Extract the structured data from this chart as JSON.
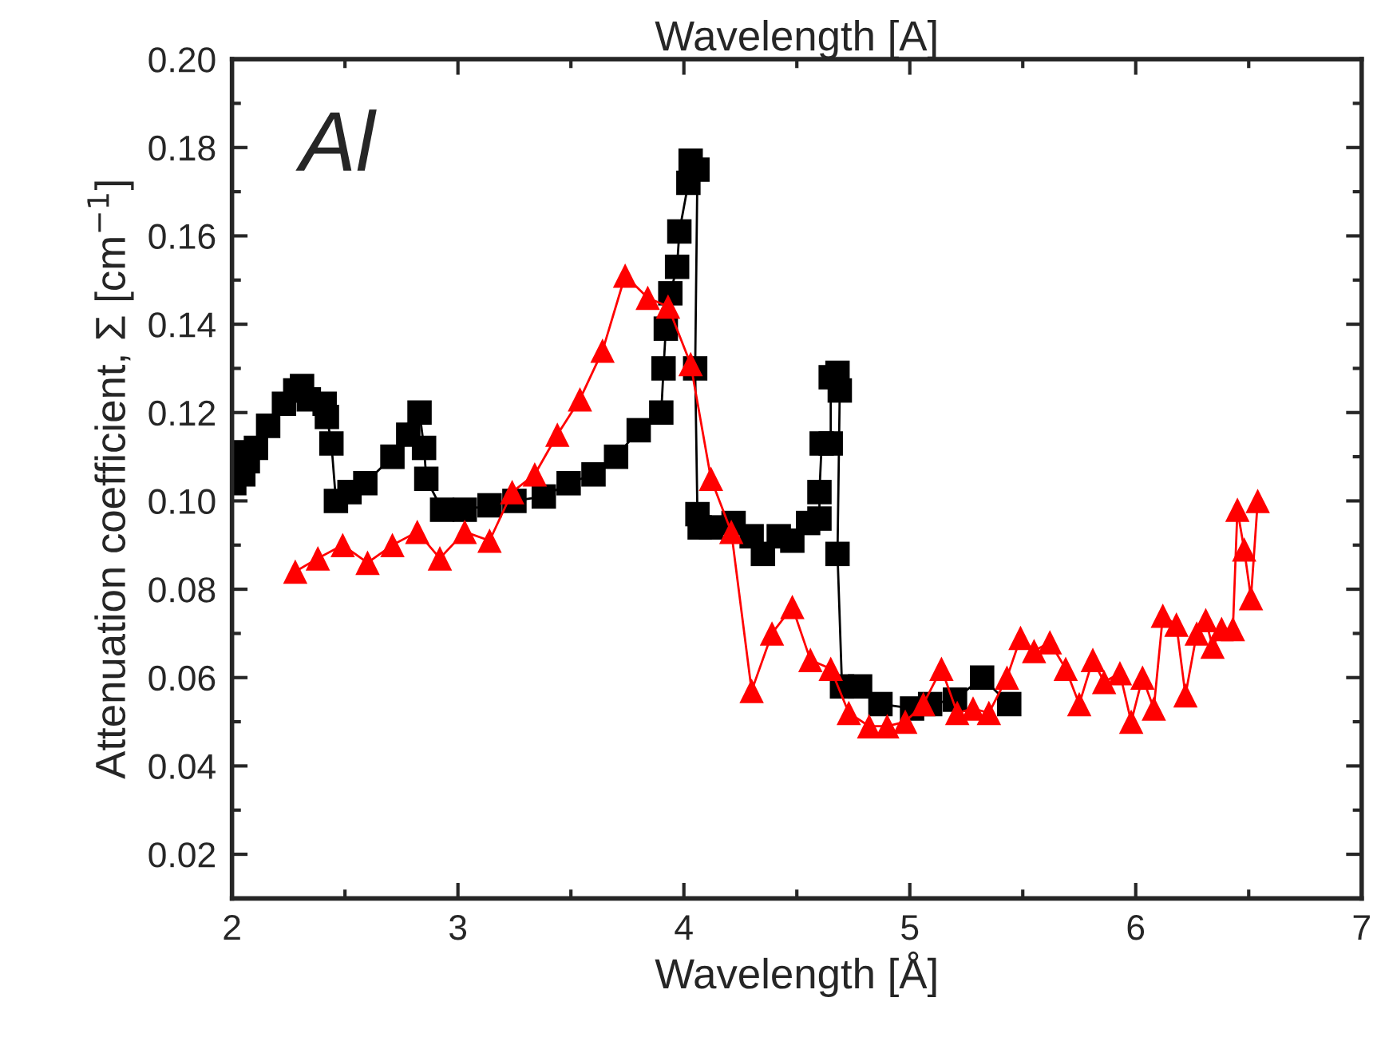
{
  "chart_data": {
    "type": "line",
    "title": "Wavelength [A]",
    "xlabel": "Wavelength [Å]",
    "ylabel": "Attenuation coefficient, Σ [cm$^{−1}$]",
    "annotations": [
      "Al"
    ],
    "xlim": [
      2,
      7
    ],
    "xticks": [
      2,
      3,
      4,
      5,
      6,
      7
    ],
    "ylim": [
      0.01,
      0.2
    ],
    "yticks": [
      {
        "value": 0.02,
        "label": "0.02"
      },
      {
        "value": 0.04,
        "label": "0.04"
      },
      {
        "value": 0.06,
        "label": "0.06"
      },
      {
        "value": 0.08,
        "label": "0.08"
      },
      {
        "value": 0.1,
        "label": "0.10"
      },
      {
        "value": 0.12,
        "label": "0.12"
      },
      {
        "value": 0.14,
        "label": "0.14"
      },
      {
        "value": 0.16,
        "label": "0.16"
      },
      {
        "value": 0.18,
        "label": "0.18"
      },
      {
        "value": 0.2,
        "label": "0.20"
      }
    ],
    "grid": false,
    "legend": false,
    "series": [
      {
        "color": "#000000",
        "marker": "square",
        "x": [
          2.01,
          2.02,
          2.035,
          2.05,
          2.07,
          2.106,
          2.16,
          2.23,
          2.28,
          2.31,
          2.34,
          2.41,
          2.42,
          2.44,
          2.46,
          2.52,
          2.59,
          2.71,
          2.78,
          2.83,
          2.85,
          2.86,
          2.93,
          3.03,
          3.14,
          3.25,
          3.38,
          3.49,
          3.6,
          3.7,
          3.8,
          3.9,
          3.91,
          3.92,
          3.94,
          3.97,
          3.98,
          4.02,
          4.03,
          4.06,
          4.05,
          4.06,
          4.07,
          4.12,
          4.22,
          4.3,
          4.35,
          4.42,
          4.48,
          4.55,
          4.6,
          4.6,
          4.61,
          4.65,
          4.65,
          4.68,
          4.69,
          4.68,
          4.7,
          4.78,
          4.87,
          5.01,
          5.09,
          5.2,
          5.32,
          5.44
        ],
        "values": [
          0.104,
          0.108,
          0.111,
          0.106,
          0.109,
          0.112,
          0.117,
          0.122,
          0.125,
          0.126,
          0.123,
          0.122,
          0.119,
          0.113,
          0.1,
          0.102,
          0.104,
          0.11,
          0.115,
          0.12,
          0.112,
          0.105,
          0.098,
          0.098,
          0.099,
          0.1,
          0.101,
          0.104,
          0.106,
          0.11,
          0.116,
          0.12,
          0.13,
          0.139,
          0.147,
          0.153,
          0.161,
          0.172,
          0.177,
          0.175,
          0.13,
          0.097,
          0.094,
          0.094,
          0.095,
          0.092,
          0.088,
          0.092,
          0.091,
          0.095,
          0.096,
          0.102,
          0.113,
          0.113,
          0.128,
          0.129,
          0.125,
          0.088,
          0.058,
          0.058,
          0.054,
          0.053,
          0.054,
          0.055,
          0.06,
          0.054
        ]
      },
      {
        "color": "#ff0000",
        "marker": "triangle",
        "x": [
          2.28,
          2.38,
          2.49,
          2.6,
          2.71,
          2.82,
          2.92,
          3.03,
          3.14,
          3.24,
          3.34,
          3.44,
          3.54,
          3.64,
          3.74,
          3.84,
          3.93,
          4.03,
          4.12,
          4.21,
          4.3,
          4.39,
          4.48,
          4.56,
          4.65,
          4.73,
          4.82,
          4.9,
          4.98,
          5.06,
          5.14,
          5.21,
          5.28,
          5.35,
          5.43,
          5.49,
          5.55,
          5.62,
          5.69,
          5.75,
          5.81,
          5.86,
          5.93,
          5.98,
          6.03,
          6.08,
          6.12,
          6.18,
          6.22,
          6.27,
          6.31,
          6.34,
          6.38,
          6.43,
          6.45,
          6.48,
          6.51,
          6.54
        ],
        "values": [
          0.084,
          0.087,
          0.09,
          0.086,
          0.09,
          0.093,
          0.087,
          0.093,
          0.091,
          0.102,
          0.106,
          0.115,
          0.123,
          0.134,
          0.151,
          0.146,
          0.144,
          0.131,
          0.105,
          0.093,
          0.057,
          0.07,
          0.076,
          0.064,
          0.062,
          0.052,
          0.049,
          0.049,
          0.05,
          0.054,
          0.062,
          0.052,
          0.053,
          0.052,
          0.06,
          0.069,
          0.066,
          0.068,
          0.062,
          0.054,
          0.064,
          0.059,
          0.061,
          0.05,
          0.06,
          0.053,
          0.074,
          0.072,
          0.056,
          0.07,
          0.073,
          0.067,
          0.071,
          0.071,
          0.098,
          0.089,
          0.078,
          0.1
        ]
      }
    ]
  }
}
